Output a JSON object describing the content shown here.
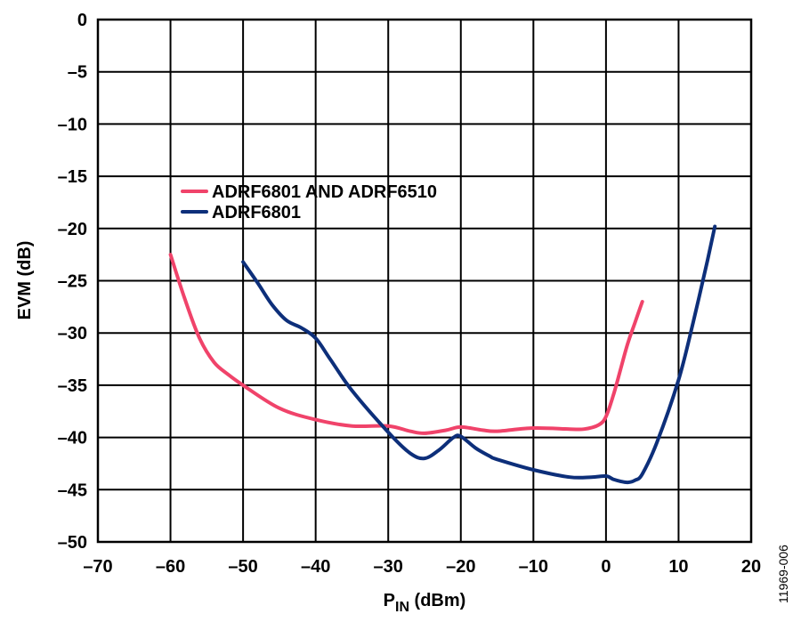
{
  "chart_data": {
    "type": "line",
    "xlabel": {
      "main": "P",
      "sub": "IN",
      "unit": " (dBm)"
    },
    "ylabel": "EVM (dB)",
    "xlim": [
      -70,
      20
    ],
    "ylim": [
      -50,
      0
    ],
    "xticks": [
      -70,
      -60,
      -50,
      -40,
      -30,
      -20,
      -10,
      0,
      10,
      20
    ],
    "yticks": [
      0,
      -5,
      -10,
      -15,
      -20,
      -25,
      -30,
      -35,
      -40,
      -45,
      -50
    ],
    "x_tick_labels": [
      "–70",
      "–60",
      "–50",
      "–40",
      "–30",
      "–20",
      "–10",
      "0",
      "10",
      "20"
    ],
    "y_tick_labels": [
      "0",
      "–5",
      "–10",
      "–15",
      "–20",
      "–25",
      "–30",
      "–35",
      "–40",
      "–45",
      "–50"
    ],
    "grid": true,
    "legend_position": "upper-left-inside",
    "series": [
      {
        "name": "ADRF6801 AND ADRF6510",
        "color": "#f0436a",
        "x": [
          -60,
          -58,
          -56,
          -54,
          -52,
          -50,
          -45,
          -40,
          -35,
          -30,
          -27,
          -25,
          -22,
          -20,
          -17,
          -15,
          -10,
          -5,
          -3,
          -1,
          0,
          1,
          2,
          3,
          4,
          5
        ],
        "y": [
          -22.5,
          -26.8,
          -30.5,
          -32.8,
          -34.0,
          -35.0,
          -37.2,
          -38.3,
          -38.9,
          -38.9,
          -39.4,
          -39.6,
          -39.3,
          -39.0,
          -39.3,
          -39.4,
          -39.1,
          -39.2,
          -39.2,
          -38.8,
          -38.0,
          -36.0,
          -33.5,
          -31.0,
          -29.0,
          -27.0
        ]
      },
      {
        "name": "ADRF6801",
        "color": "#0d2f7a",
        "x": [
          -50,
          -48,
          -46,
          -44,
          -42,
          -40,
          -38,
          -35,
          -30,
          -27,
          -25,
          -23,
          -21,
          -20,
          -18,
          -16,
          -15,
          -10,
          -5,
          -2,
          0,
          1,
          2,
          3,
          4,
          5,
          7,
          10,
          12,
          14,
          15
        ],
        "y": [
          -23.2,
          -25.2,
          -27.3,
          -28.8,
          -29.5,
          -30.5,
          -32.5,
          -35.5,
          -39.5,
          -41.5,
          -42.0,
          -41.2,
          -40.0,
          -39.9,
          -41.0,
          -41.8,
          -42.1,
          -43.1,
          -43.8,
          -43.8,
          -43.7,
          -44.0,
          -44.2,
          -44.3,
          -44.1,
          -43.5,
          -40.5,
          -34.5,
          -29.0,
          -23.0,
          -19.8
        ]
      }
    ]
  },
  "figure_id": "11969-006"
}
